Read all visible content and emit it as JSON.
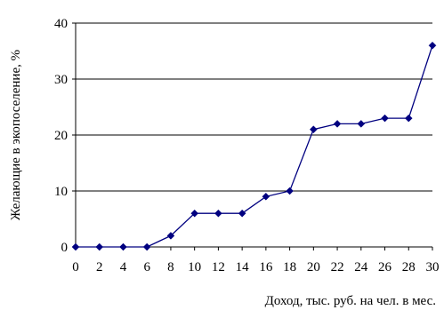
{
  "chart_data": {
    "type": "line",
    "title": "",
    "xlabel": "Доход, тыс. руб. на чел. в мес.",
    "ylabel": "Желающие в экопоселение, %",
    "x": [
      0,
      2,
      4,
      6,
      8,
      10,
      12,
      14,
      16,
      18,
      20,
      22,
      24,
      26,
      28,
      30
    ],
    "series": [
      {
        "values": [
          0,
          0,
          0,
          0,
          2,
          6,
          6,
          6,
          9,
          10,
          21,
          22,
          22,
          23,
          23,
          36
        ]
      }
    ],
    "xticks": [
      "0",
      "2",
      "4",
      "6",
      "8",
      "10",
      "12",
      "14",
      "16",
      "18",
      "20",
      "22",
      "24",
      "26",
      "28",
      "30"
    ],
    "yticks": [
      "0",
      "10",
      "20",
      "30",
      "40"
    ],
    "xlim": [
      0,
      30
    ],
    "ylim": [
      0,
      40
    ],
    "grid": "horizontal",
    "line_color": "#000080",
    "marker": "diamond"
  }
}
